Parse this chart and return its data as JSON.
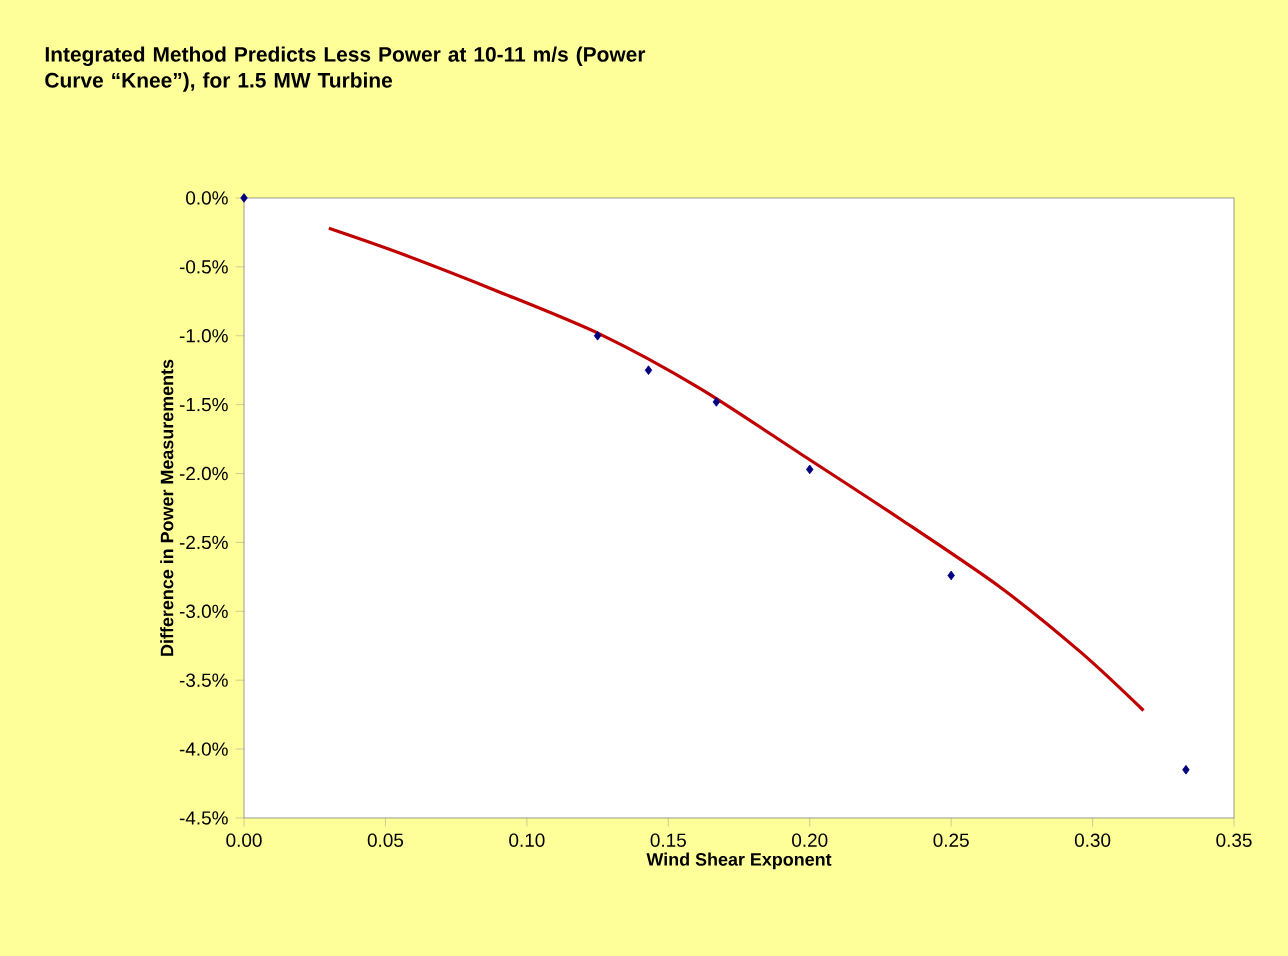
{
  "chart_data": {
    "type": "scatter",
    "title": "Integrated Method Predicts Less Power at 10-11 m/s (Power Curve “Knee”), for 1.5 MW Turbine",
    "xlabel": "Wind Shear Exponent",
    "ylabel": "Difference in Power Measurements",
    "xlim": [
      0,
      0.35
    ],
    "xticks": [
      {
        "value": 0,
        "label": "0.00"
      },
      {
        "value": 0.05,
        "label": "0.05"
      },
      {
        "value": 0.1,
        "label": "0.10"
      },
      {
        "value": 0.15,
        "label": "0.15"
      },
      {
        "value": 0.2,
        "label": "0.20"
      },
      {
        "value": 0.25,
        "label": "0.25"
      },
      {
        "value": 0.3,
        "label": "0.30"
      },
      {
        "value": 0.35,
        "label": "0.35"
      }
    ],
    "ylim": [
      -4.5,
      0
    ],
    "yticks": [
      {
        "value": 0,
        "label": "0.0%"
      },
      {
        "value": -0.5,
        "label": "-0.5%"
      },
      {
        "value": -1,
        "label": "-1.0%"
      },
      {
        "value": -1.5,
        "label": "-1.5%"
      },
      {
        "value": -2,
        "label": "-2.0%"
      },
      {
        "value": -2.5,
        "label": "-2.5%"
      },
      {
        "value": -3,
        "label": "-3.0%"
      },
      {
        "value": -3.5,
        "label": "-3.5%"
      },
      {
        "value": -4,
        "label": "-4.0%"
      },
      {
        "value": -4.5,
        "label": "-4.5%"
      }
    ],
    "series": [
      {
        "color": "#000080",
        "marker": "diamond",
        "x": [
          0,
          0.125,
          0.143,
          0.167,
          0.2,
          0.25,
          0.333
        ],
        "values": [
          0,
          -1.0,
          -1.25,
          -1.48,
          -1.97,
          -2.74,
          -4.15
        ]
      },
      {
        "type": "line",
        "color": "#c00000",
        "marker": "none",
        "line_style": "solid",
        "x": [
          0.03,
          0.055,
          0.09,
          0.126,
          0.161,
          0.197,
          0.232,
          0.267,
          0.296,
          0.318
        ],
        "values": [
          -0.22,
          -0.4,
          -0.68,
          -0.99,
          -1.38,
          -1.86,
          -2.33,
          -2.82,
          -3.3,
          -3.72
        ]
      }
    ]
  }
}
